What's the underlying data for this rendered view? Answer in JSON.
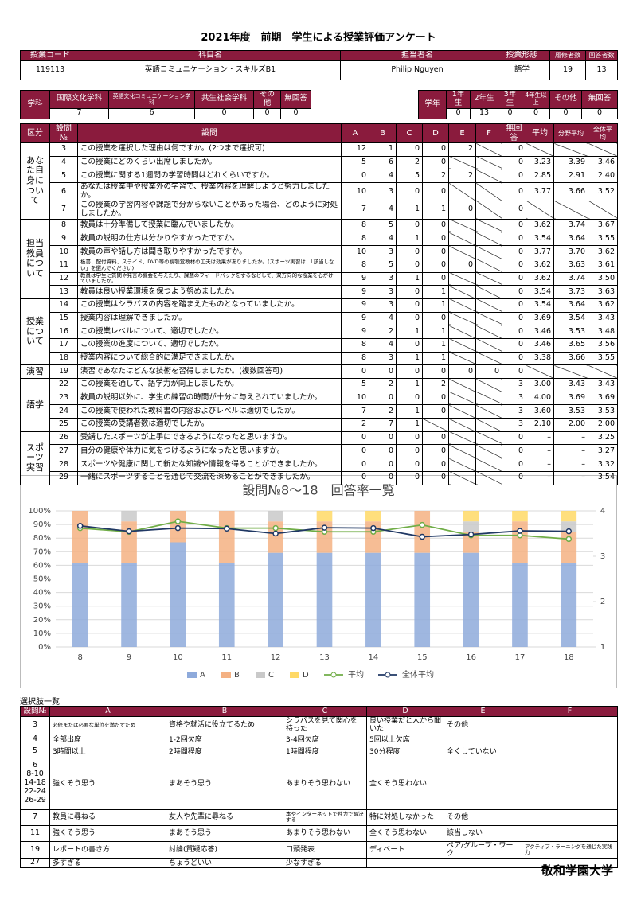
{
  "title": "2021年度　前期　学生による授業評価アンケート",
  "course": {
    "headers": [
      "授業コード",
      "科目名",
      "担当者名",
      "授業形態",
      "履修者数",
      "回答者数"
    ],
    "values": [
      119113,
      "英語コミュニケーション・スキルズB1",
      "Philip Nguyen",
      "語学",
      19,
      13
    ]
  },
  "departments": {
    "label": "学科",
    "headers": [
      "国際文化学科",
      "英語文化コミュニケーション学科",
      "共生社会学科",
      "その他",
      "無回答"
    ],
    "values": [
      7,
      6,
      0,
      0,
      0
    ]
  },
  "years": {
    "label": "学年",
    "headers": [
      "1年生",
      "2年生",
      "3年生",
      "4年生以上",
      "その他",
      "無回答"
    ],
    "values": [
      0,
      13,
      0,
      0,
      0,
      0
    ]
  },
  "survey": {
    "headers": [
      "区分",
      "設問№",
      "設問",
      "A",
      "B",
      "C",
      "D",
      "E",
      "F",
      "無回答",
      "平均",
      "分野平均",
      "全体平均"
    ],
    "groups": [
      {
        "label": "あなた自身について",
        "rows": [
          {
            "no": 3,
            "question": "この授業を選択した理由は何ですか。(2つまで選択可)",
            "answers": [
              12,
              1,
              0,
              0,
              2,
              null
            ],
            "no_answer": 0,
            "averages": [
              null,
              null,
              null
            ]
          },
          {
            "no": 4,
            "question": "この授業にどのくらい出席しましたか。",
            "answers": [
              5,
              6,
              2,
              0,
              null,
              null
            ],
            "no_answer": 0,
            "averages": [
              "3.23",
              "3.39",
              "3.46"
            ]
          },
          {
            "no": 5,
            "question": "この授業に関する1週間の学習時間はどれくらいですか。",
            "answers": [
              0,
              4,
              5,
              2,
              2,
              null
            ],
            "no_answer": 0,
            "averages": [
              "2.85",
              "2.91",
              "2.40"
            ]
          },
          {
            "no": 6,
            "question": "あなたは授業中や授業外の学習で、授業内容を理解しようと努力しましたか。",
            "answers": [
              10,
              3,
              0,
              0,
              null,
              null
            ],
            "no_answer": 0,
            "averages": [
              "3.77",
              "3.66",
              "3.52"
            ]
          },
          {
            "no": 7,
            "question": "この授業の学習内容や課題で分からないことがあった場合、どのように対処しましたか。",
            "answers": [
              7,
              4,
              1,
              1,
              0,
              null
            ],
            "no_answer": 0,
            "averages": [
              null,
              null,
              null
            ]
          }
        ]
      },
      {
        "label": "担当教員について",
        "rows": [
          {
            "no": 8,
            "question": "教員は十分準備して授業に臨んでいましたか。",
            "answers": [
              8,
              5,
              0,
              0,
              null,
              null
            ],
            "no_answer": 0,
            "averages": [
              "3.62",
              "3.74",
              "3.67"
            ]
          },
          {
            "no": 9,
            "question": "教員の説明の仕方は分かりやすかったですか。",
            "answers": [
              8,
              4,
              1,
              0,
              null,
              null
            ],
            "no_answer": 0,
            "averages": [
              "3.54",
              "3.64",
              "3.55"
            ]
          },
          {
            "no": 10,
            "question": "教員の声や話し方は聞き取りやすかったですか。",
            "answers": [
              10,
              3,
              0,
              0,
              null,
              null
            ],
            "no_answer": 0,
            "averages": [
              "3.77",
              "3.70",
              "3.62"
            ]
          },
          {
            "no": 11,
            "question": "板書、配付資料、スライド、DVD等の視聴覚教材の工夫は効果がありましたか。(スポーツ実習は、「該当しない」を選んでください)",
            "answers": [
              8,
              5,
              0,
              0,
              0,
              null
            ],
            "no_answer": 0,
            "averages": [
              "3.62",
              "3.63",
              "3.61"
            ]
          },
          {
            "no": 12,
            "question": "教員は学生に質問や発言の機会を与えたり、課題のフィードバックをするなどして、双方向的な授業を心がけていましたか。",
            "answers": [
              9,
              3,
              1,
              0,
              null,
              null
            ],
            "no_answer": 0,
            "averages": [
              "3.62",
              "3.74",
              "3.50"
            ]
          },
          {
            "no": 13,
            "question": "教員は良い授業環境を保つよう努めましたか。",
            "answers": [
              9,
              3,
              0,
              1,
              null,
              null
            ],
            "no_answer": 0,
            "averages": [
              "3.54",
              "3.73",
              "3.63"
            ]
          }
        ]
      },
      {
        "label": "授業について",
        "rows": [
          {
            "no": 14,
            "question": "この授業はシラバスの内容を踏まえたものとなっていましたか。",
            "answers": [
              9,
              3,
              0,
              1,
              null,
              null
            ],
            "no_answer": 0,
            "averages": [
              "3.54",
              "3.64",
              "3.62"
            ]
          },
          {
            "no": 15,
            "question": "授業内容は理解できましたか。",
            "answers": [
              9,
              4,
              0,
              0,
              null,
              null
            ],
            "no_answer": 0,
            "averages": [
              "3.69",
              "3.54",
              "3.43"
            ]
          },
          {
            "no": 16,
            "question": "この授業レベルについて、適切でしたか。",
            "answers": [
              9,
              2,
              1,
              1,
              null,
              null
            ],
            "no_answer": 0,
            "averages": [
              "3.46",
              "3.53",
              "3.48"
            ]
          },
          {
            "no": 17,
            "question": "この授業の進度について、適切でしたか。",
            "answers": [
              8,
              4,
              0,
              1,
              null,
              null
            ],
            "no_answer": 0,
            "averages": [
              "3.46",
              "3.65",
              "3.56"
            ]
          },
          {
            "no": 18,
            "question": "授業内容について総合的に満足できましたか。",
            "answers": [
              8,
              3,
              1,
              1,
              null,
              null
            ],
            "no_answer": 0,
            "averages": [
              "3.38",
              "3.66",
              "3.55"
            ]
          }
        ]
      },
      {
        "label": "演習",
        "rows": [
          {
            "no": 19,
            "question": "演習であなたはどんな技術を習得しましたか。(複数回答可)",
            "answers": [
              0,
              0,
              0,
              0,
              0,
              0
            ],
            "no_answer": 0,
            "averages": [
              null,
              null,
              null
            ]
          }
        ]
      },
      {
        "label": "語学",
        "rows": [
          {
            "no": 22,
            "question": "この授業を通して、語学力が向上しましたか。",
            "answers": [
              5,
              2,
              1,
              2,
              null,
              null
            ],
            "no_answer": 3,
            "averages": [
              "3.00",
              "3.43",
              "3.43"
            ]
          },
          {
            "no": 23,
            "question": "教員の説明以外に、学生の練習の時間が十分に与えられていましたか。",
            "answers": [
              10,
              0,
              0,
              0,
              null,
              null
            ],
            "no_answer": 3,
            "averages": [
              "4.00",
              "3.69",
              "3.69"
            ]
          },
          {
            "no": 24,
            "question": "この授業で使われた教科書の内容およびレベルは適切でしたか。",
            "answers": [
              7,
              2,
              1,
              0,
              null,
              null
            ],
            "no_answer": 3,
            "averages": [
              "3.60",
              "3.53",
              "3.53"
            ]
          },
          {
            "no": 25,
            "question": "この授業の受講者数は適切でしたか。",
            "answers": [
              2,
              7,
              1,
              null,
              null,
              null
            ],
            "no_answer": 3,
            "averages": [
              "2.10",
              "2.00",
              "2.00"
            ]
          }
        ]
      },
      {
        "label": "スポーツ実習",
        "rows": [
          {
            "no": 26,
            "question": "受講したスポーツが上手にできるようになったと思いますか。",
            "answers": [
              0,
              0,
              0,
              0,
              null,
              null
            ],
            "no_answer": 0,
            "averages": [
              "–",
              "–",
              "3.25"
            ]
          },
          {
            "no": 27,
            "question": "自分の健康や体力に気をつけるようになったと思いますか。",
            "answers": [
              0,
              0,
              0,
              0,
              null,
              null
            ],
            "no_answer": 0,
            "averages": [
              "–",
              "–",
              "3.27"
            ]
          },
          {
            "no": 28,
            "question": "スポーツや健康に関して新たな知識や情報を得ることができましたか。",
            "answers": [
              0,
              0,
              0,
              0,
              null,
              null
            ],
            "no_answer": 0,
            "averages": [
              "–",
              "–",
              "3.32"
            ]
          },
          {
            "no": 29,
            "question": "一緒にスポーツすることを通じて交流を深めることができましたか。",
            "answers": [
              0,
              0,
              0,
              0,
              null,
              null
            ],
            "no_answer": 0,
            "averages": [
              "–",
              "–",
              "3.54"
            ]
          }
        ]
      }
    ]
  },
  "chart_data": {
    "type": "bar",
    "title": "設問№8～18　回答率一覧",
    "categories": [
      8,
      9,
      10,
      11,
      12,
      13,
      14,
      15,
      16,
      17,
      18
    ],
    "stacked": true,
    "series": [
      {
        "name": "A",
        "color": "#8eaadb",
        "values": [
          61.5,
          61.5,
          76.9,
          61.5,
          69.2,
          69.2,
          69.2,
          69.2,
          69.2,
          61.5,
          61.5
        ]
      },
      {
        "name": "B",
        "color": "#f4b183",
        "values": [
          38.5,
          30.8,
          23.1,
          38.5,
          23.1,
          23.1,
          23.1,
          30.8,
          15.4,
          30.8,
          23.1
        ]
      },
      {
        "name": "C",
        "color": "#c9c9c9",
        "values": [
          0,
          7.7,
          0,
          0,
          7.7,
          0,
          0,
          0,
          7.7,
          0,
          7.7
        ]
      },
      {
        "name": "D",
        "color": "#ffd966",
        "values": [
          0,
          0,
          0,
          0,
          0,
          7.7,
          7.7,
          0,
          7.7,
          7.7,
          7.7
        ]
      },
      {
        "name": "平均",
        "color": "#70ad47",
        "type": "line",
        "axis": "y2",
        "values": [
          3.62,
          3.54,
          3.77,
          3.62,
          3.62,
          3.54,
          3.54,
          3.69,
          3.46,
          3.46,
          3.38
        ]
      },
      {
        "name": "全体平均",
        "color": "#203864",
        "type": "line",
        "axis": "y2",
        "values": [
          3.67,
          3.55,
          3.62,
          3.61,
          3.5,
          3.63,
          3.62,
          3.43,
          3.48,
          3.56,
          3.55
        ]
      }
    ],
    "ylim": [
      0,
      100
    ],
    "yticks": [
      {
        "value": 0,
        "label": "0%"
      },
      {
        "value": 10,
        "label": "10%"
      },
      {
        "value": 20,
        "label": "20%"
      },
      {
        "value": 30,
        "label": "30%"
      },
      {
        "value": 40,
        "label": "40%"
      },
      {
        "value": 50,
        "label": "50%"
      },
      {
        "value": 60,
        "label": "60%"
      },
      {
        "value": 70,
        "label": "70%"
      },
      {
        "value": 80,
        "label": "80%"
      },
      {
        "value": 90,
        "label": "90%"
      },
      {
        "value": 100,
        "label": "100%"
      }
    ],
    "y2lim": [
      1,
      4
    ],
    "y2ticks": [
      1,
      2,
      3,
      4
    ],
    "grid": true,
    "legend": "bottom"
  },
  "options": {
    "title": "選択肢一覧",
    "headers": [
      "設問№",
      "A",
      "B",
      "C",
      "D",
      "E",
      "F"
    ],
    "rows": [
      {
        "no": [
          3
        ],
        "choices": [
          "必修または必要な単位を満たすため",
          "資格や就活に役立てるため",
          "シラバスを見て関心を持った",
          "良い授業だと人から聞いた",
          "その他",
          null
        ]
      },
      {
        "no": [
          4
        ],
        "choices": [
          "全部出席",
          "1-2回欠席",
          "3-4回欠席",
          "5回以上欠席",
          null,
          null
        ]
      },
      {
        "no": [
          5
        ],
        "choices": [
          "3時間以上",
          "2時間程度",
          "1時間程度",
          "30分程度",
          "全くしていない",
          null
        ]
      },
      {
        "no": [
          "6",
          "8-10",
          "14-18",
          "22-24",
          "26-29"
        ],
        "choices": [
          "強くそう思う",
          "まあそう思う",
          "あまりそう思わない",
          "全くそう思わない",
          null,
          null
        ]
      },
      {
        "no": [
          7
        ],
        "choices": [
          "教員に尋ねる",
          "友人や先輩に尋ねる",
          "本やインターネットで独力で解決する",
          "特に対処しなかった",
          "その他",
          null
        ]
      },
      {
        "no": [
          11
        ],
        "choices": [
          "強くそう思う",
          "まあそう思う",
          "あまりそう思わない",
          "全くそう思わない",
          "該当しない",
          null
        ]
      },
      {
        "no": [
          19
        ],
        "choices": [
          "レポートの書き方",
          "討論(質疑応答)",
          "口頭発表",
          "ディベート",
          "ペア/グループ・ワーク",
          "アクティブ・ラーニングを通じた実践力"
        ]
      },
      {
        "no": [
          27
        ],
        "choices": [
          "多すぎる",
          "ちょうどいい",
          "少なすぎる",
          null,
          null,
          null
        ]
      }
    ]
  },
  "university": "敬和学園大学"
}
